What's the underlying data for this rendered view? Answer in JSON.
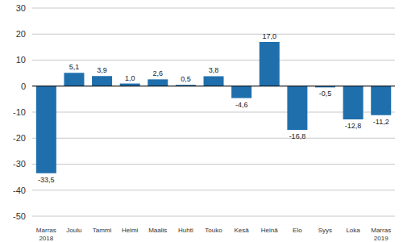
{
  "chart_data": {
    "type": "bar",
    "categories": [
      "Marras 2018",
      "Joulu",
      "Tammi",
      "Helmi",
      "Maalis",
      "Huhti",
      "Touko",
      "Kesä",
      "Heinä",
      "Elo",
      "Syys",
      "Loka",
      "Marras 2019"
    ],
    "values": [
      -33.5,
      5.1,
      3.9,
      1.0,
      2.6,
      0.5,
      3.8,
      -4.6,
      17.0,
      -16.8,
      -0.5,
      -12.8,
      -11.2
    ],
    "value_labels": [
      "-33,5",
      "5,1",
      "3,9",
      "1,0",
      "2,6",
      "0,5",
      "3,8",
      "-4,6",
      "17,0",
      "-16,8",
      "-0,5",
      "-12,8",
      "-11,2"
    ],
    "color": "#1f6fad",
    "ylim": [
      -50,
      30
    ],
    "yticks": [
      -50,
      -40,
      -30,
      -20,
      -10,
      0,
      10,
      20,
      30
    ],
    "grid": true,
    "data_labels": true
  }
}
